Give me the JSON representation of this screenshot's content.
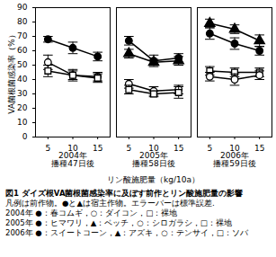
{
  "chart_data": {
    "type": "line",
    "title": "図1 ダイズ根VA菌根菌感染率に及ぼす前作とリン酸施肥量の影響",
    "caption": [
      "凡例は前作物。●と▲は宿主作物。エラーバーは標準誤差.",
      "2004年 ●：春コムギ，○：ダイコン，□：裸地",
      "2005年 ●：ヒマワリ，▲：ベッチ，○：シロガラシ，□：裸地",
      "2006年 ●：スイートコーン，▲：アズキ，○：テンサイ，□：ソバ"
    ],
    "xlabel": "リン酸施肥量（kg/10a）",
    "ylabel": "VA菌根菌感染率（%）",
    "x": [
      5,
      10,
      15
    ],
    "xlim": [
      2.5,
      17.5
    ],
    "xticks": [
      5,
      10,
      15
    ],
    "ylim": [
      0,
      90
    ],
    "yticks": [
      0,
      10,
      20,
      30,
      40,
      50,
      60,
      70,
      80,
      90
    ],
    "panels": [
      {
        "title": "2004年",
        "subtitle": "播種47日後",
        "series": [
          {
            "name": "春コムギ",
            "marker": "filled_circle",
            "color": "#000000",
            "values": [
              68,
              62,
              56
            ],
            "errors": [
              2,
              4,
              3
            ]
          },
          {
            "name": "ダイコン",
            "marker": "open_circle",
            "color": "#000000",
            "values": [
              52,
              43,
              42
            ],
            "errors": [
              5,
              4,
              3
            ]
          },
          {
            "name": "裸地",
            "marker": "open_square",
            "color": "#000000",
            "values": [
              46,
              43,
              41
            ],
            "errors": [
              4,
              3,
              3
            ]
          }
        ]
      },
      {
        "title": "2005年",
        "subtitle": "播種58日後",
        "series": [
          {
            "name": "ヒマワリ",
            "marker": "filled_circle",
            "color": "#000000",
            "values": [
              67,
              53,
              55
            ],
            "errors": [
              3,
              4,
              3
            ]
          },
          {
            "name": "ベッチ",
            "marker": "filled_triangle",
            "color": "#000000",
            "values": [
              58,
              52,
              53
            ],
            "errors": [
              3,
              2,
              3
            ]
          },
          {
            "name": "シロガラシ",
            "marker": "open_circle",
            "color": "#000000",
            "values": [
              37,
              32,
              33
            ],
            "errors": [
              3,
              3,
              3
            ]
          },
          {
            "name": "裸地",
            "marker": "open_square",
            "color": "#000000",
            "values": [
              33,
              30,
              31
            ],
            "errors": [
              3,
              2,
              4
            ]
          }
        ]
      },
      {
        "title": "2006年",
        "subtitle": "播種59日後",
        "series": [
          {
            "name": "アズキ",
            "marker": "filled_triangle",
            "color": "#000000",
            "values": [
              79,
              75,
              67
            ],
            "errors": [
              3,
              3,
              4
            ]
          },
          {
            "name": "スイートコーン",
            "marker": "filled_circle",
            "color": "#000000",
            "values": [
              72,
              65,
              60
            ],
            "errors": [
              4,
              4,
              3
            ]
          },
          {
            "name": "ソバ",
            "marker": "open_square",
            "color": "#000000",
            "values": [
              46,
              45,
              45
            ],
            "errors": [
              3,
              3,
              3
            ]
          },
          {
            "name": "テンサイ",
            "marker": "open_circle",
            "color": "#000000",
            "values": [
              42,
              40,
              43
            ],
            "errors": [
              3,
              4,
              3
            ]
          }
        ]
      }
    ]
  }
}
